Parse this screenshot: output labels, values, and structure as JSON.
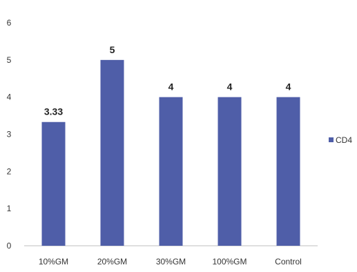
{
  "chart_data": {
    "type": "bar",
    "categories": [
      "10%GM",
      "20%GM",
      "30%GM",
      "100%GM",
      "Control"
    ],
    "series": [
      {
        "name": "CD4",
        "values": [
          3.33,
          5,
          4,
          4,
          4
        ],
        "data_labels": [
          "3.33",
          "5",
          "4",
          "4",
          "4"
        ]
      }
    ],
    "ylim": [
      0,
      6
    ],
    "y_ticks": [
      "0",
      "1",
      "2",
      "3",
      "4",
      "5",
      "6"
    ],
    "grid": false,
    "legend_position": "right",
    "colors": {
      "bar": "#4F5EA8",
      "axis": "#BFBFBF"
    }
  }
}
